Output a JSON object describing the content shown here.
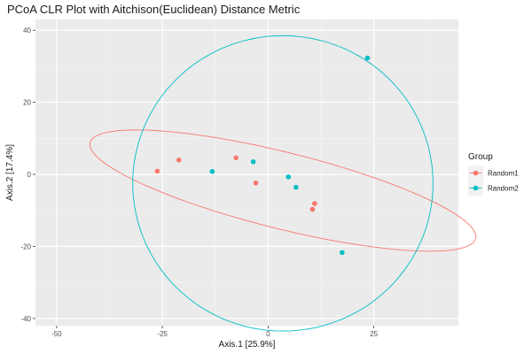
{
  "chart_data": {
    "type": "scatter",
    "title": "PCoA CLR Plot with Aitchison(Euclidean) Distance Metric",
    "xlabel": "Axis.1   [25.9%]",
    "ylabel": "Axis.2   [17.4%]",
    "xlim": [
      -55,
      45
    ],
    "ylim": [
      -42,
      43
    ],
    "x_ticks": [
      -50,
      -25,
      0,
      25
    ],
    "y_ticks": [
      -40,
      -20,
      0,
      20,
      40
    ],
    "grid": true,
    "legend": {
      "title": "Group",
      "placement": "right"
    },
    "series": [
      {
        "name": "Random1",
        "color": "#F8766D",
        "points": [
          {
            "x": -26.2,
            "y": 0.9
          },
          {
            "x": -21.1,
            "y": 4.0
          },
          {
            "x": -7.6,
            "y": 4.6
          },
          {
            "x": -2.9,
            "y": -2.4
          },
          {
            "x": 11.0,
            "y": -8.1
          },
          {
            "x": 10.5,
            "y": -9.7
          }
        ],
        "ellipse": {
          "cx": 3.5,
          "cy": -4.5,
          "rx": 47.5,
          "ry": 10.5,
          "angle_deg": -16.5
        }
      },
      {
        "name": "Random2",
        "color": "#00BFC4",
        "points": [
          {
            "x": -13.2,
            "y": 0.8
          },
          {
            "x": -3.5,
            "y": 3.5
          },
          {
            "x": 4.8,
            "y": -0.7
          },
          {
            "x": 6.6,
            "y": -3.6
          },
          {
            "x": 17.5,
            "y": -21.7
          },
          {
            "x": 23.5,
            "y": 32.3
          }
        ],
        "ellipse": {
          "cx": 3.5,
          "cy": -2.5,
          "rx": 35.5,
          "ry": 41,
          "angle_deg": 0
        }
      }
    ]
  }
}
